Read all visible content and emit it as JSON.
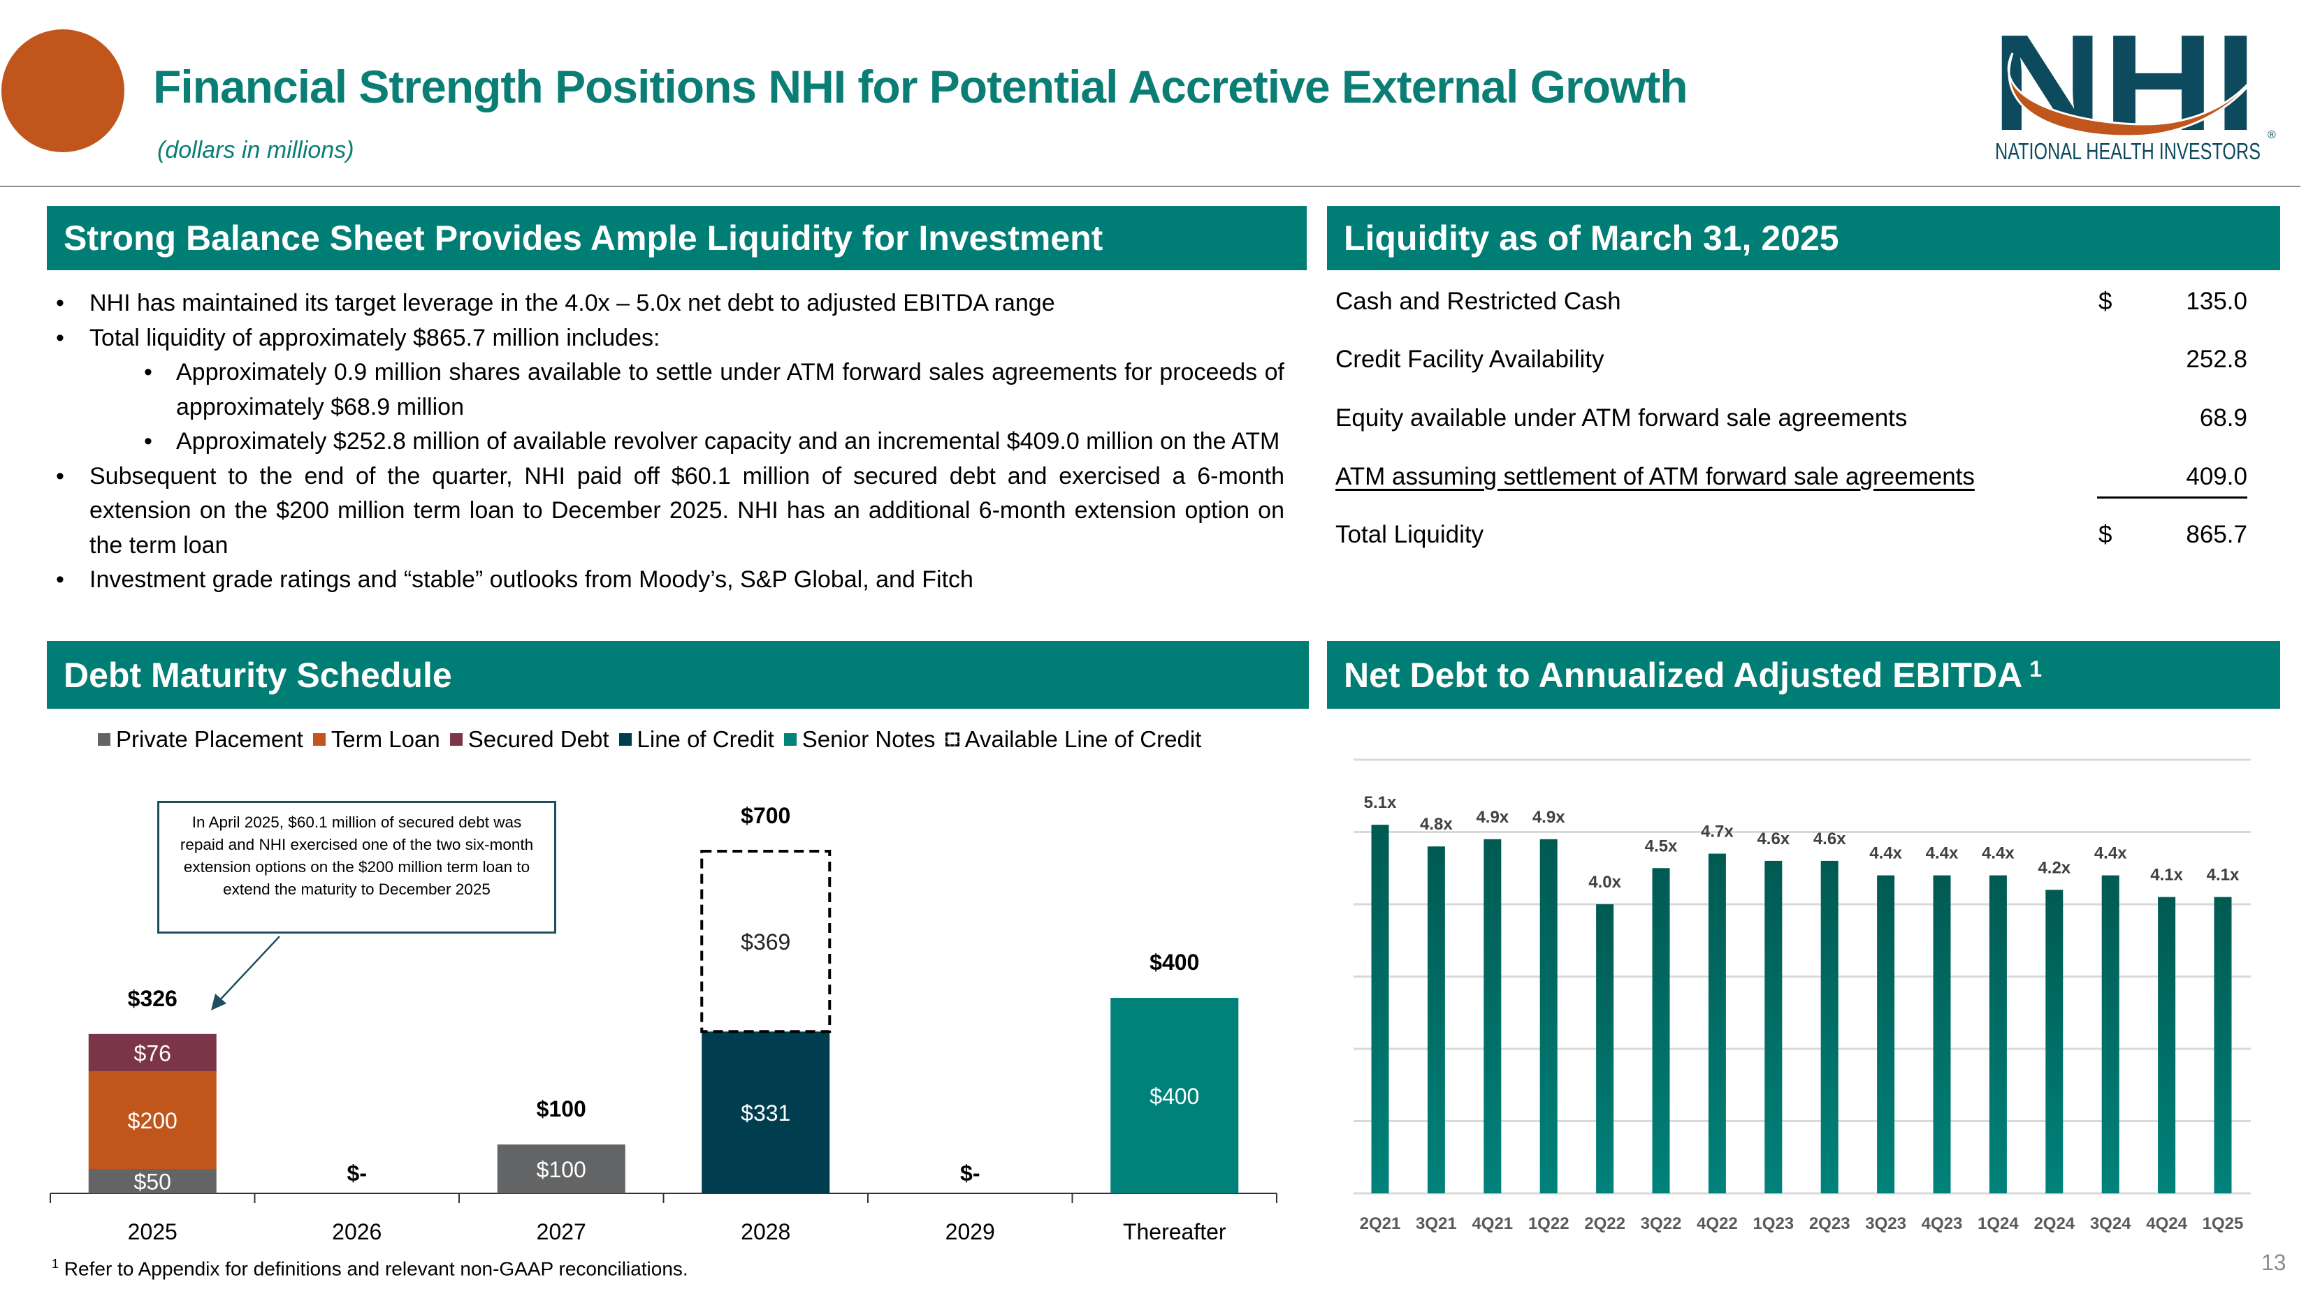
{
  "header": {
    "title": "Financial Strength Positions NHI for Potential Accretive External Growth",
    "subtitle": "(dollars in millions)"
  },
  "logo": {
    "text": "NHI",
    "tagline": "NATIONAL HEALTH INVESTORS",
    "mark": "®"
  },
  "colors": {
    "accent_teal": "#007d74",
    "accent_orange": "#c0561c",
    "navy": "#0e4a5e"
  },
  "balance_sheet": {
    "heading": "Strong Balance Sheet Provides Ample Liquidity for Investment",
    "bullets": [
      {
        "level": 1,
        "text": "NHI has maintained its target leverage in the 4.0x – 5.0x net debt to adjusted EBITDA range"
      },
      {
        "level": 1,
        "text": "Total liquidity of approximately $865.7 million includes:"
      },
      {
        "level": 2,
        "text": "Approximately 0.9 million shares available to settle under ATM forward sales agreements for proceeds of approximately $68.9 million"
      },
      {
        "level": 2,
        "text": "Approximately $252.8 million of available revolver capacity and an incremental $409.0 million on the ATM"
      },
      {
        "level": 1,
        "text": "Subsequent to the end of the quarter, NHI paid off $60.1 million of secured debt and exercised a 6-month extension on the $200 million term loan to December 2025.  NHI has an additional 6-month extension option on the term loan"
      },
      {
        "level": 1,
        "text": "Investment grade ratings and “stable” outlooks from Moody’s, S&P Global, and Fitch"
      }
    ]
  },
  "liquidity": {
    "heading": "Liquidity as of March 31, 2025",
    "rows": [
      {
        "label": "Cash and Restricted Cash",
        "currency": "$",
        "value": "135.0"
      },
      {
        "label": "Credit Facility Availability",
        "currency": "",
        "value": "252.8"
      },
      {
        "label": "Equity available under ATM forward sale agreements",
        "currency": "",
        "value": "68.9"
      },
      {
        "label": "ATM assuming settlement of ATM forward sale agreements",
        "currency": "",
        "value": "409.0"
      },
      {
        "label": "Total Liquidity",
        "currency": "$",
        "value": "865.7"
      }
    ]
  },
  "debt_maturity": {
    "heading": "Debt Maturity Schedule",
    "callout": "In April 2025, $60.1 million of secured debt was repaid and NHI exercised one of the two six-month extension options on the $200 million term loan to extend the maturity to December 2025"
  },
  "net_debt": {
    "heading": "Net Debt to Annualized Adjusted EBITDA",
    "footnote_marker": "1"
  },
  "footnote": {
    "marker": "1",
    "text": "Refer to Appendix for definitions and relevant non-GAAP reconciliations."
  },
  "page_number": "13",
  "chart_data": [
    {
      "type": "bar",
      "stacked": true,
      "categories": [
        "2025",
        "2026",
        "2027",
        "2028",
        "2029",
        "Thereafter"
      ],
      "legend": [
        "Private Placement",
        "Term Loan",
        "Secured Debt",
        "Line of Credit",
        "Senior Notes",
        "Available Line of Credit"
      ],
      "legend_position": "top",
      "series": [
        {
          "name": "Private Placement",
          "color": "#636466",
          "values": [
            50,
            0,
            100,
            0,
            0,
            0
          ],
          "labels": [
            "$50",
            "",
            "$100",
            "",
            "",
            ""
          ]
        },
        {
          "name": "Term Loan",
          "color": "#c0561c",
          "values": [
            200,
            0,
            0,
            0,
            0,
            0
          ],
          "labels": [
            "$200",
            "",
            "",
            "",
            "",
            ""
          ]
        },
        {
          "name": "Secured Debt",
          "color": "#7b3448",
          "values": [
            76,
            0,
            0,
            0,
            0,
            0
          ],
          "labels": [
            "$76",
            "",
            "",
            "",
            "",
            ""
          ]
        },
        {
          "name": "Line of Credit",
          "color": "#003d4f",
          "values": [
            0,
            0,
            0,
            331,
            0,
            0
          ],
          "labels": [
            "",
            "",
            "",
            "$331",
            "",
            ""
          ]
        },
        {
          "name": "Senior Notes",
          "color": "#00827a",
          "values": [
            0,
            0,
            0,
            0,
            0,
            400
          ],
          "labels": [
            "",
            "",
            "",
            "",
            "",
            "$400"
          ]
        },
        {
          "name": "Available Line of Credit",
          "color": "dashed-outline",
          "values": [
            0,
            0,
            0,
            369,
            0,
            0
          ],
          "labels": [
            "",
            "",
            "",
            "$369",
            "",
            ""
          ]
        }
      ],
      "totals": [
        "$326",
        "$-",
        "$100",
        "$700",
        "$-",
        "$400"
      ],
      "ylim": [
        0,
        800
      ],
      "grid": false
    },
    {
      "type": "bar",
      "categories": [
        "2Q21",
        "3Q21",
        "4Q21",
        "1Q22",
        "2Q22",
        "3Q22",
        "4Q22",
        "1Q23",
        "2Q23",
        "3Q23",
        "4Q23",
        "1Q24",
        "2Q24",
        "3Q24",
        "4Q24",
        "1Q25"
      ],
      "values": [
        5.1,
        4.8,
        4.9,
        4.9,
        4.0,
        4.5,
        4.7,
        4.6,
        4.6,
        4.4,
        4.4,
        4.4,
        4.2,
        4.4,
        4.1,
        4.1
      ],
      "labels": [
        "5.1x",
        "4.8x",
        "4.9x",
        "4.9x",
        "4.0x",
        "4.5x",
        "4.7x",
        "4.6x",
        "4.6x",
        "4.4x",
        "4.4x",
        "4.4x",
        "4.2x",
        "4.4x",
        "4.1x",
        "4.1x"
      ],
      "color": "#00827a",
      "ylim": [
        0,
        6
      ],
      "grid": true
    }
  ]
}
